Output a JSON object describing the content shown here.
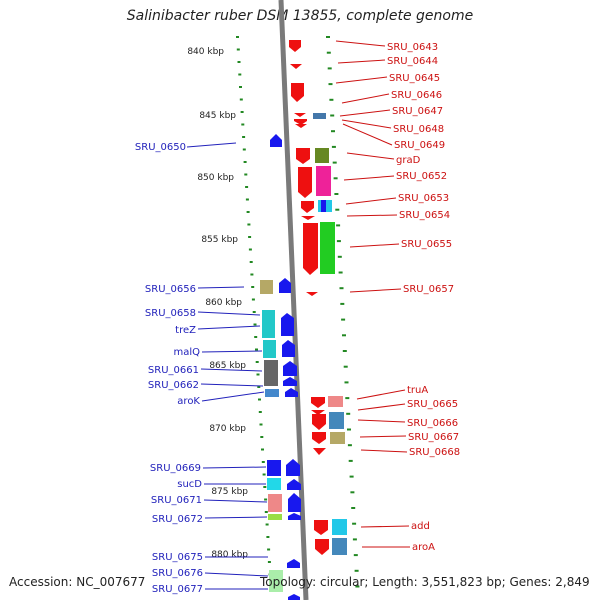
{
  "title": "Salinibacter ruber DSM 13855, complete genome",
  "footer": {
    "accession": "Accession: NC_007677",
    "summary": "Topology: circular; Length: 3,551,823 bp; Genes: 2,849"
  },
  "colors": {
    "forward_gene": "#1010ee",
    "reverse_gene": "#ee1010",
    "left_label": "#2222bb",
    "right_label": "#cc1111",
    "axis": "#888888",
    "tick": "#228822"
  },
  "scale_labels": [
    "840 kbp",
    "845 kbp",
    "850 kbp",
    "855 kbp",
    "860 kbp",
    "865 kbp",
    "870 kbp",
    "875 kbp",
    "880 kbp"
  ],
  "left_labels": [
    "SRU_0650",
    "SRU_0656",
    "SRU_0658",
    "treZ",
    "malQ",
    "SRU_0661",
    "SRU_0662",
    "aroK",
    "SRU_0669",
    "sucD",
    "SRU_0671",
    "SRU_0672",
    "SRU_0675",
    "SRU_0676",
    "SRU_0677"
  ],
  "right_labels": [
    "SRU_0643",
    "SRU_0644",
    "SRU_0645",
    "SRU_0646",
    "SRU_0647",
    "SRU_0648",
    "SRU_0649",
    "graD",
    "SRU_0652",
    "SRU_0653",
    "SRU_0654",
    "SRU_0655",
    "SRU_0657",
    "truA",
    "SRU_0665",
    "SRU_0666",
    "SRU_0667",
    "SRU_0668",
    "add",
    "aroA"
  ]
}
